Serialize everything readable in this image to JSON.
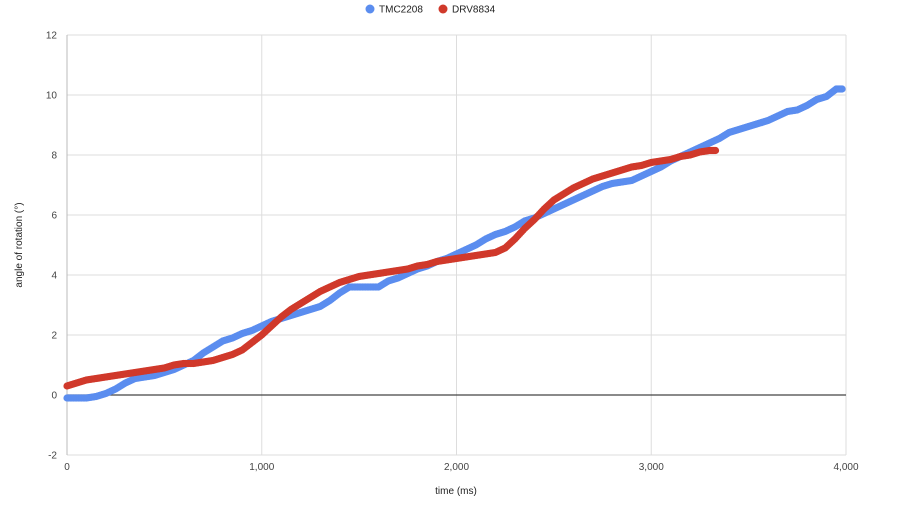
{
  "chart_data": {
    "type": "scatter",
    "title": "",
    "xlabel": "time (ms)",
    "ylabel": "angle of rotation (°)",
    "xlim": [
      0,
      4000
    ],
    "ylim": [
      -2,
      12
    ],
    "x_ticks": [
      0,
      1000,
      2000,
      3000,
      4000
    ],
    "x_tick_labels": [
      "0",
      "1,000",
      "2,000",
      "3,000",
      "4,000"
    ],
    "y_ticks": [
      -2,
      0,
      2,
      4,
      6,
      8,
      10,
      12
    ],
    "y_tick_labels": [
      "-2",
      "0",
      "2",
      "4",
      "6",
      "8",
      "10",
      "12"
    ],
    "grid": true,
    "legend_position": "top-center",
    "series": [
      {
        "name": "TMC2208",
        "color": "#5b8def",
        "points": [
          [
            0,
            -0.1
          ],
          [
            50,
            -0.1
          ],
          [
            100,
            -0.1
          ],
          [
            150,
            -0.05
          ],
          [
            200,
            0.05
          ],
          [
            250,
            0.2
          ],
          [
            300,
            0.4
          ],
          [
            350,
            0.55
          ],
          [
            400,
            0.6
          ],
          [
            450,
            0.65
          ],
          [
            500,
            0.75
          ],
          [
            550,
            0.85
          ],
          [
            600,
            1.0
          ],
          [
            650,
            1.15
          ],
          [
            700,
            1.4
          ],
          [
            750,
            1.6
          ],
          [
            800,
            1.8
          ],
          [
            850,
            1.9
          ],
          [
            900,
            2.05
          ],
          [
            950,
            2.15
          ],
          [
            1000,
            2.3
          ],
          [
            1050,
            2.45
          ],
          [
            1100,
            2.55
          ],
          [
            1150,
            2.65
          ],
          [
            1200,
            2.75
          ],
          [
            1250,
            2.85
          ],
          [
            1300,
            2.95
          ],
          [
            1350,
            3.15
          ],
          [
            1400,
            3.4
          ],
          [
            1450,
            3.6
          ],
          [
            1500,
            3.6
          ],
          [
            1550,
            3.6
          ],
          [
            1600,
            3.6
          ],
          [
            1650,
            3.8
          ],
          [
            1700,
            3.9
          ],
          [
            1750,
            4.05
          ],
          [
            1800,
            4.2
          ],
          [
            1850,
            4.3
          ],
          [
            1900,
            4.45
          ],
          [
            1950,
            4.55
          ],
          [
            2000,
            4.7
          ],
          [
            2050,
            4.85
          ],
          [
            2100,
            5.0
          ],
          [
            2150,
            5.2
          ],
          [
            2200,
            5.35
          ],
          [
            2250,
            5.45
          ],
          [
            2300,
            5.6
          ],
          [
            2350,
            5.8
          ],
          [
            2400,
            5.9
          ],
          [
            2450,
            6.05
          ],
          [
            2500,
            6.2
          ],
          [
            2550,
            6.35
          ],
          [
            2600,
            6.5
          ],
          [
            2650,
            6.65
          ],
          [
            2700,
            6.8
          ],
          [
            2750,
            6.95
          ],
          [
            2800,
            7.05
          ],
          [
            2850,
            7.1
          ],
          [
            2900,
            7.15
          ],
          [
            2950,
            7.3
          ],
          [
            3000,
            7.45
          ],
          [
            3050,
            7.6
          ],
          [
            3100,
            7.8
          ],
          [
            3150,
            7.95
          ],
          [
            3200,
            8.1
          ],
          [
            3250,
            8.25
          ],
          [
            3300,
            8.4
          ],
          [
            3350,
            8.55
          ],
          [
            3400,
            8.75
          ],
          [
            3450,
            8.85
          ],
          [
            3500,
            8.95
          ],
          [
            3550,
            9.05
          ],
          [
            3600,
            9.15
          ],
          [
            3650,
            9.3
          ],
          [
            3700,
            9.45
          ],
          [
            3750,
            9.5
          ],
          [
            3800,
            9.65
          ],
          [
            3850,
            9.85
          ],
          [
            3900,
            9.95
          ],
          [
            3950,
            10.2
          ],
          [
            3980,
            10.2
          ]
        ]
      },
      {
        "name": "DRV8834",
        "color": "#d0392b",
        "points": [
          [
            0,
            0.3
          ],
          [
            50,
            0.4
          ],
          [
            100,
            0.5
          ],
          [
            150,
            0.55
          ],
          [
            200,
            0.6
          ],
          [
            250,
            0.65
          ],
          [
            300,
            0.7
          ],
          [
            350,
            0.75
          ],
          [
            400,
            0.8
          ],
          [
            450,
            0.85
          ],
          [
            500,
            0.9
          ],
          [
            550,
            1.0
          ],
          [
            600,
            1.05
          ],
          [
            650,
            1.05
          ],
          [
            700,
            1.1
          ],
          [
            750,
            1.15
          ],
          [
            800,
            1.25
          ],
          [
            850,
            1.35
          ],
          [
            900,
            1.5
          ],
          [
            950,
            1.75
          ],
          [
            1000,
            2.0
          ],
          [
            1050,
            2.3
          ],
          [
            1100,
            2.6
          ],
          [
            1150,
            2.85
          ],
          [
            1200,
            3.05
          ],
          [
            1250,
            3.25
          ],
          [
            1300,
            3.45
          ],
          [
            1350,
            3.6
          ],
          [
            1400,
            3.75
          ],
          [
            1450,
            3.85
          ],
          [
            1500,
            3.95
          ],
          [
            1550,
            4.0
          ],
          [
            1600,
            4.05
          ],
          [
            1650,
            4.1
          ],
          [
            1700,
            4.15
          ],
          [
            1750,
            4.2
          ],
          [
            1800,
            4.3
          ],
          [
            1850,
            4.35
          ],
          [
            1900,
            4.45
          ],
          [
            1950,
            4.5
          ],
          [
            2000,
            4.55
          ],
          [
            2050,
            4.6
          ],
          [
            2100,
            4.65
          ],
          [
            2150,
            4.7
          ],
          [
            2200,
            4.75
          ],
          [
            2250,
            4.9
          ],
          [
            2300,
            5.2
          ],
          [
            2350,
            5.55
          ],
          [
            2400,
            5.85
          ],
          [
            2450,
            6.2
          ],
          [
            2500,
            6.5
          ],
          [
            2550,
            6.7
          ],
          [
            2600,
            6.9
          ],
          [
            2650,
            7.05
          ],
          [
            2700,
            7.2
          ],
          [
            2750,
            7.3
          ],
          [
            2800,
            7.4
          ],
          [
            2850,
            7.5
          ],
          [
            2900,
            7.6
          ],
          [
            2950,
            7.65
          ],
          [
            3000,
            7.75
          ],
          [
            3050,
            7.8
          ],
          [
            3100,
            7.85
          ],
          [
            3150,
            7.95
          ],
          [
            3200,
            8.0
          ],
          [
            3250,
            8.1
          ],
          [
            3300,
            8.15
          ],
          [
            3330,
            8.15
          ]
        ]
      }
    ]
  }
}
